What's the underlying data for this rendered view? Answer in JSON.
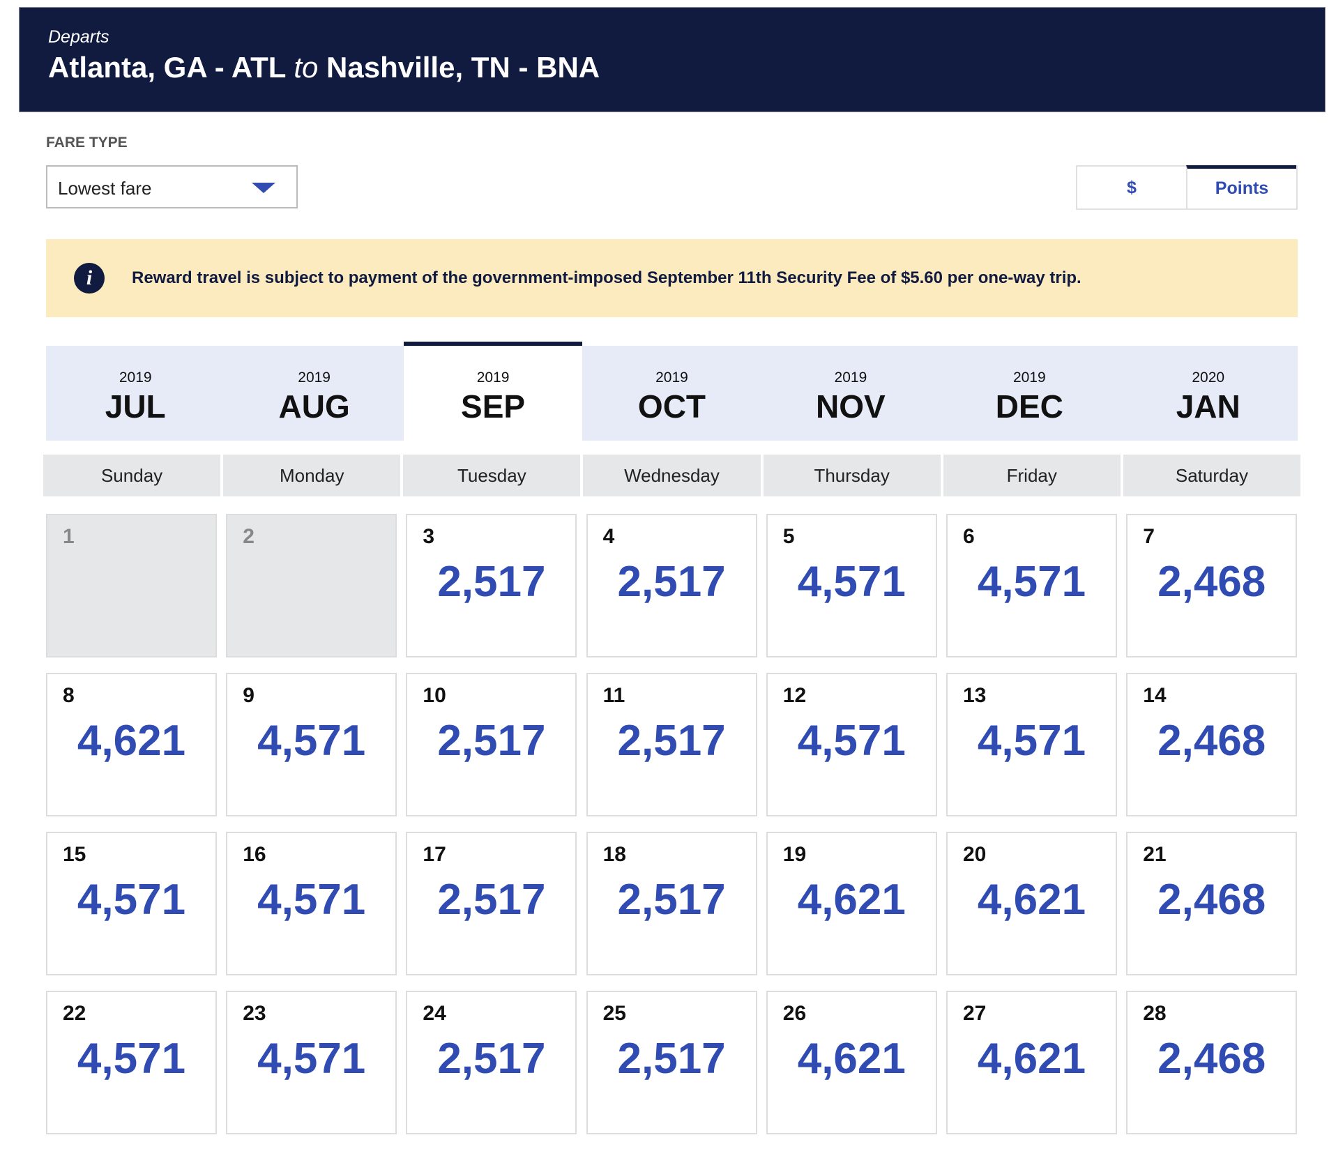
{
  "header": {
    "label": "Departs",
    "origin": "Atlanta, GA - ATL",
    "connector": "to",
    "destination": "Nashville, TN - BNA"
  },
  "fare_type": {
    "label": "FARE TYPE",
    "selected": "Lowest fare"
  },
  "toggle": [
    "$",
    "Points"
  ],
  "notice": "Reward travel is subject to payment of the government-imposed September 11th Security Fee of $5.60 per one-way trip.",
  "months": [
    {
      "year": "2019",
      "month": "JUL"
    },
    {
      "year": "2019",
      "month": "AUG"
    },
    {
      "year": "2019",
      "month": "SEP"
    },
    {
      "year": "2019",
      "month": "OCT"
    },
    {
      "year": "2019",
      "month": "NOV"
    },
    {
      "year": "2019",
      "month": "DEC"
    },
    {
      "year": "2020",
      "month": "JAN"
    }
  ],
  "weekdays": [
    "Sunday",
    "Monday",
    "Tuesday",
    "Wednesday",
    "Thursday",
    "Friday",
    "Saturday"
  ],
  "days": [
    {
      "day": "1",
      "points": null
    },
    {
      "day": "2",
      "points": null
    },
    {
      "day": "3",
      "points": "2,517"
    },
    {
      "day": "4",
      "points": "2,517"
    },
    {
      "day": "5",
      "points": "4,571"
    },
    {
      "day": "6",
      "points": "4,571"
    },
    {
      "day": "7",
      "points": "2,468"
    },
    {
      "day": "8",
      "points": "4,621"
    },
    {
      "day": "9",
      "points": "4,571"
    },
    {
      "day": "10",
      "points": "2,517"
    },
    {
      "day": "11",
      "points": "2,517"
    },
    {
      "day": "12",
      "points": "4,571"
    },
    {
      "day": "13",
      "points": "4,571"
    },
    {
      "day": "14",
      "points": "2,468"
    },
    {
      "day": "15",
      "points": "4,571"
    },
    {
      "day": "16",
      "points": "4,571"
    },
    {
      "day": "17",
      "points": "2,517"
    },
    {
      "day": "18",
      "points": "2,517"
    },
    {
      "day": "19",
      "points": "4,621"
    },
    {
      "day": "20",
      "points": "4,621"
    },
    {
      "day": "21",
      "points": "2,468"
    },
    {
      "day": "22",
      "points": "4,571"
    },
    {
      "day": "23",
      "points": "4,571"
    },
    {
      "day": "24",
      "points": "2,517"
    },
    {
      "day": "25",
      "points": "2,517"
    },
    {
      "day": "26",
      "points": "4,621"
    },
    {
      "day": "27",
      "points": "4,621"
    },
    {
      "day": "28",
      "points": "2,468"
    }
  ]
}
